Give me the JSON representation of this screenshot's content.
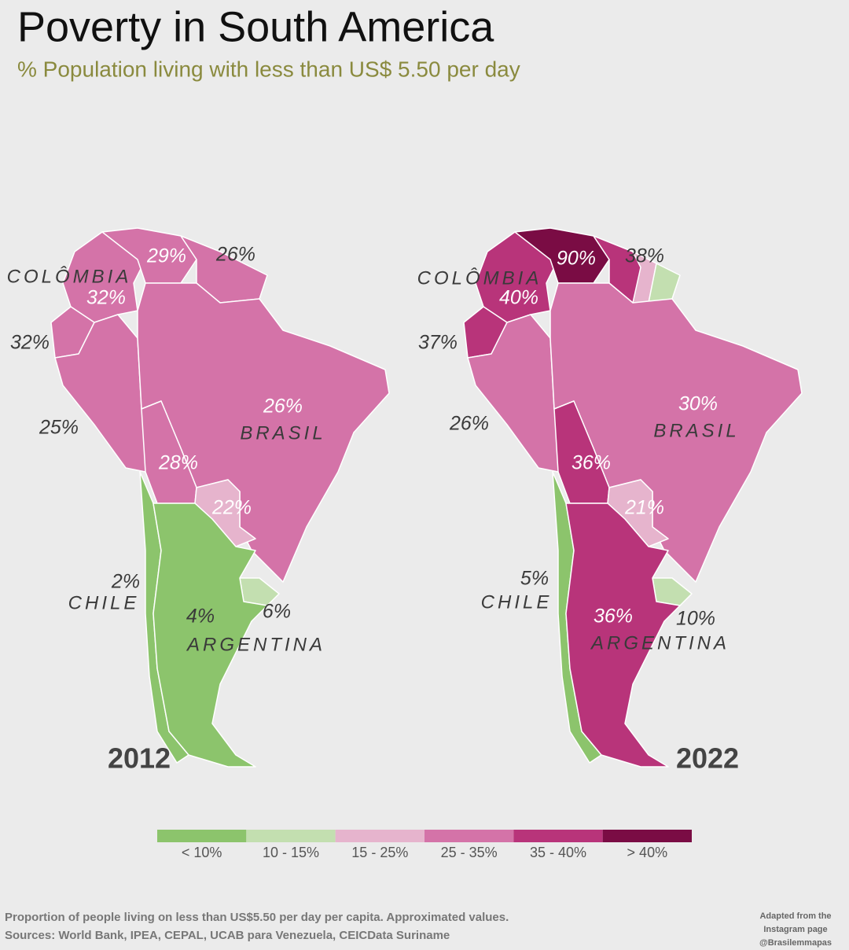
{
  "header": {
    "title": "Poverty in South America",
    "subtitle": "% Population living with less than US$ 5.50 per day"
  },
  "maps": [
    {
      "year": "2012",
      "labels": [
        "29%",
        "26%",
        "COLÔMBIA",
        "32%",
        "32%",
        "25%",
        "26%",
        "BRASIL",
        "28%",
        "22%",
        "2%",
        "CHILE",
        "4%",
        "6%",
        "ARGENTINA"
      ]
    },
    {
      "year": "2022",
      "labels": [
        "90%",
        "38%",
        "COLÔMBIA",
        "40%",
        "37%",
        "26%",
        "30%",
        "BRASIL",
        "36%",
        "21%",
        "5%",
        "CHILE",
        "36%",
        "10%",
        "ARGENTINA"
      ]
    }
  ],
  "legend": [
    {
      "label": "< 10%",
      "color": "#8cc46c"
    },
    {
      "label": "10 - 15%",
      "color": "#c3dfb0"
    },
    {
      "label": "15 - 25%",
      "color": "#e6b4cd"
    },
    {
      "label": "25 - 35%",
      "color": "#d473a8"
    },
    {
      "label": "35 - 40%",
      "color": "#b8347a"
    },
    {
      "label": "> 40%",
      "color": "#7a0c44"
    }
  ],
  "footer": {
    "lines": [
      "Proportion of people living on less than US$5.50 per day per capita. Approximated values.",
      "Sources: World Bank, IPEA, CEPAL, UCAB para Venezuela, CEICData Suriname"
    ],
    "credit": [
      "Adapted from the",
      "Instagram page",
      "@Brasilemmapas"
    ]
  }
}
